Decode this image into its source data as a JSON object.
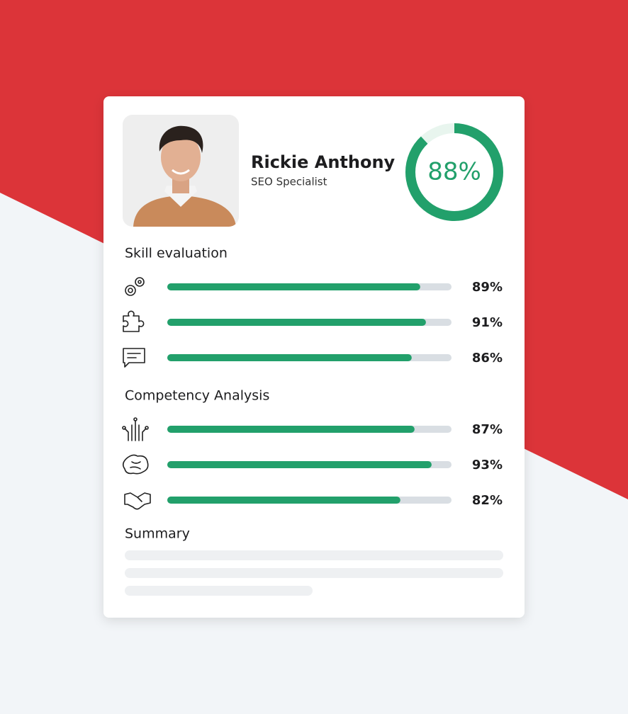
{
  "profile": {
    "name": "Rickie Anthony",
    "role": "SEO Specialist",
    "score": {
      "value": 88,
      "label": "88%"
    }
  },
  "sections": [
    {
      "title": "Skill evaluation",
      "items": [
        {
          "value": 89,
          "label": "89%"
        },
        {
          "value": 91,
          "label": "91%"
        },
        {
          "value": 86,
          "label": "86%"
        }
      ]
    },
    {
      "title": "Competency Analysis",
      "items": [
        {
          "value": 87,
          "label": "87%"
        },
        {
          "value": 93,
          "label": "93%"
        },
        {
          "value": 82,
          "label": "82%"
        }
      ]
    }
  ],
  "summary": {
    "title": "Summary"
  }
}
